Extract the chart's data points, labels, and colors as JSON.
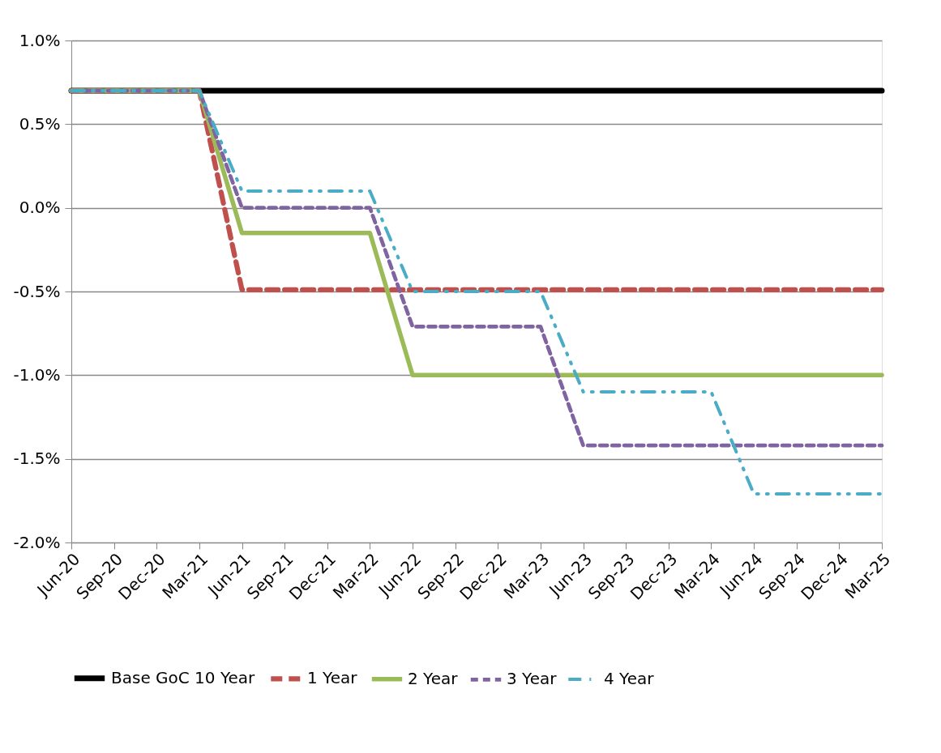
{
  "chart_data": {
    "type": "line",
    "categories": [
      "Jun-20",
      "Sep-20",
      "Dec-20",
      "Mar-21",
      "Jun-21",
      "Sep-21",
      "Dec-21",
      "Mar-22",
      "Jun-22",
      "Sep-22",
      "Dec-22",
      "Mar-23",
      "Jun-23",
      "Sep-23",
      "Dec-23",
      "Mar-24",
      "Jun-24",
      "Sep-24",
      "Dec-24",
      "Mar-25"
    ],
    "series": [
      {
        "name": "Base GoC 10 Year",
        "color": "#000000",
        "line_style": "solid",
        "values": [
          0.7,
          0.7,
          0.7,
          0.7,
          0.7,
          0.7,
          0.7,
          0.7,
          0.7,
          0.7,
          0.7,
          0.7,
          0.7,
          0.7,
          0.7,
          0.7,
          0.7,
          0.7,
          0.7,
          0.7
        ]
      },
      {
        "name": "1 Year",
        "color": "#c0504d",
        "line_style": "dashed",
        "values": [
          0.7,
          0.7,
          0.7,
          0.7,
          -0.49,
          -0.49,
          -0.49,
          -0.49,
          -0.49,
          -0.49,
          -0.49,
          -0.49,
          -0.49,
          -0.49,
          -0.49,
          -0.49,
          -0.49,
          -0.49,
          -0.49,
          -0.49
        ]
      },
      {
        "name": "2 Year",
        "color": "#9bbb59",
        "line_style": "solid",
        "values": [
          0.7,
          0.7,
          0.7,
          0.7,
          -0.15,
          -0.15,
          -0.15,
          -0.15,
          -1.0,
          -1.0,
          -1.0,
          -1.0,
          -1.0,
          -1.0,
          -1.0,
          -1.0,
          -1.0,
          -1.0,
          -1.0,
          -1.0
        ]
      },
      {
        "name": "3 Year",
        "color": "#8064a2",
        "line_style": "dashed",
        "values": [
          0.7,
          0.7,
          0.7,
          0.7,
          0.0,
          0.0,
          0.0,
          0.0,
          -0.71,
          -0.71,
          -0.71,
          -0.71,
          -1.42,
          -1.42,
          -1.42,
          -1.42,
          -1.42,
          -1.42,
          -1.42,
          -1.42
        ]
      },
      {
        "name": "4 Year",
        "color": "#4bacc6",
        "line_style": "dashdot",
        "values": [
          0.7,
          0.7,
          0.7,
          0.7,
          0.1,
          0.1,
          0.1,
          0.1,
          -0.5,
          -0.5,
          -0.5,
          -0.5,
          -1.1,
          -1.1,
          -1.1,
          -1.1,
          -1.71,
          -1.71,
          -1.71,
          -1.71
        ]
      }
    ],
    "ylim": [
      -2.0,
      1.0
    ],
    "yticks": [
      {
        "value": -2.0,
        "label": "-2.0%"
      },
      {
        "value": -1.5,
        "label": "-1.5%"
      },
      {
        "value": -1.0,
        "label": "-1.0%"
      },
      {
        "value": -0.5,
        "label": "-0.5%"
      },
      {
        "value": 0.0,
        "label": "0.0%"
      },
      {
        "value": 0.5,
        "label": "0.5%"
      },
      {
        "value": 1.0,
        "label": "1.0%"
      }
    ],
    "grid": "y",
    "legend": "bottom"
  }
}
